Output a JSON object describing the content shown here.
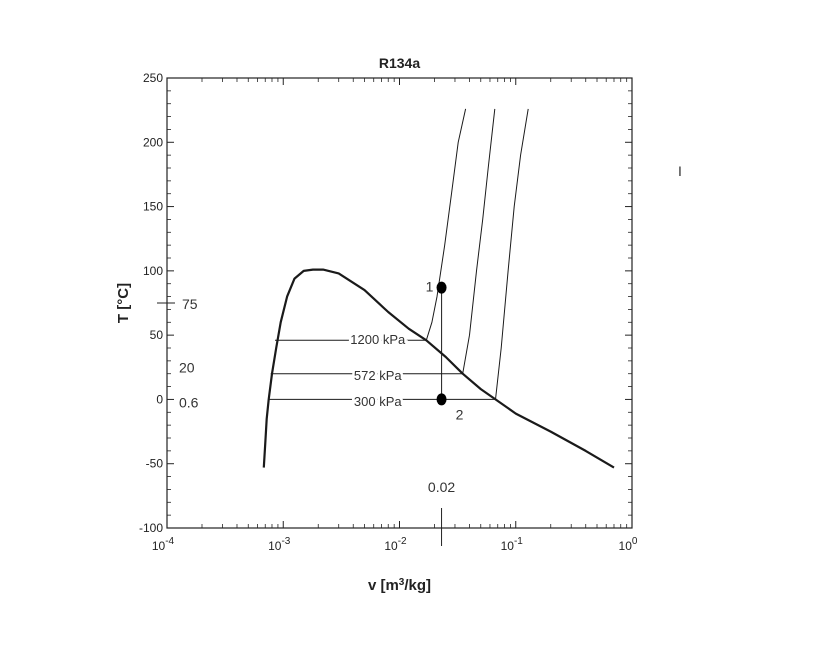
{
  "chart_data": {
    "type": "line",
    "title": "R134a",
    "xlabel": "v [m³/kg]",
    "xlabel_parts": {
      "main": "v [m",
      "sup": "3",
      "end": "/kg]"
    },
    "ylabel": "T [°C]",
    "x_scale": "log",
    "xlim": [
      0.0001,
      1
    ],
    "ylim": [
      -100,
      250
    ],
    "x_ticks": [
      {
        "value": 0.0001,
        "base": "10",
        "exp": "-4"
      },
      {
        "value": 0.001,
        "base": "10",
        "exp": "-3"
      },
      {
        "value": 0.01,
        "base": "10",
        "exp": "-2"
      },
      {
        "value": 0.1,
        "base": "10",
        "exp": "-1"
      },
      {
        "value": 1,
        "base": "10",
        "exp": "0"
      }
    ],
    "y_ticks": [
      -100,
      -50,
      0,
      50,
      100,
      150,
      200,
      250
    ],
    "grid": false,
    "series": [
      {
        "kind": "saturation-dome",
        "points": [
          [
            0.00068,
            -53
          ],
          [
            0.0007,
            -35
          ],
          [
            0.00072,
            -15
          ],
          [
            0.00075,
            0
          ],
          [
            0.0008,
            20
          ],
          [
            0.00087,
            40
          ],
          [
            0.00095,
            60
          ],
          [
            0.00108,
            80
          ],
          [
            0.00125,
            94
          ],
          [
            0.0015,
            100
          ],
          [
            0.0018,
            101
          ],
          [
            0.0022,
            101
          ],
          [
            0.003,
            98
          ],
          [
            0.005,
            85
          ],
          [
            0.008,
            68
          ],
          [
            0.012,
            55
          ],
          [
            0.017,
            46
          ],
          [
            0.025,
            33
          ],
          [
            0.035,
            20
          ],
          [
            0.05,
            8
          ],
          [
            0.067,
            0
          ],
          [
            0.1,
            -11
          ],
          [
            0.2,
            -25
          ],
          [
            0.4,
            -40
          ],
          [
            0.7,
            -53
          ]
        ]
      },
      {
        "kind": "isobar",
        "points": [
          [
            0.00085,
            46
          ],
          [
            0.017,
            46
          ],
          [
            0.019,
            60
          ],
          [
            0.021,
            80
          ],
          [
            0.0245,
            120
          ],
          [
            0.028,
            160
          ],
          [
            0.032,
            200
          ],
          [
            0.037,
            226
          ]
        ]
      },
      {
        "kind": "isobar",
        "points": [
          [
            0.00078,
            20
          ],
          [
            0.035,
            20
          ],
          [
            0.04,
            50
          ],
          [
            0.046,
            100
          ],
          [
            0.052,
            140
          ],
          [
            0.058,
            180
          ],
          [
            0.066,
            226
          ]
        ]
      },
      {
        "kind": "isobar",
        "points": [
          [
            0.00075,
            0
          ],
          [
            0.067,
            0
          ],
          [
            0.075,
            40
          ],
          [
            0.086,
            100
          ],
          [
            0.097,
            150
          ],
          [
            0.11,
            190
          ],
          [
            0.128,
            226
          ]
        ]
      },
      {
        "kind": "process",
        "points": [
          [
            0.023,
            87
          ],
          [
            0.023,
            0
          ]
        ]
      }
    ],
    "isobar_labels": [
      {
        "text": "1200 kPa",
        "x": 0.0065,
        "y": 43
      },
      {
        "text": "572 kPa",
        "x": 0.0065,
        "y": 15
      },
      {
        "text": "300 kPa",
        "x": 0.0065,
        "y": -5
      }
    ],
    "states": [
      {
        "label": "1",
        "x": 0.023,
        "y": 87
      },
      {
        "label": "2",
        "x": 0.023,
        "y": 0
      }
    ],
    "outside_labels": {
      "t75": "75",
      "t20": "20",
      "t06": "0.6",
      "v002": "0.02"
    },
    "cursor_mark": "I"
  }
}
